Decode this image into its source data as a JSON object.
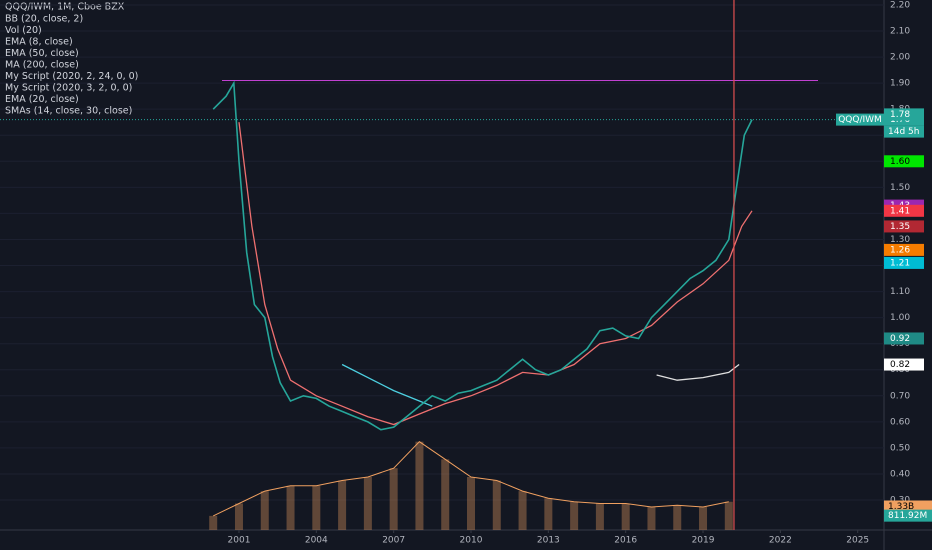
{
  "chart_data": {
    "type": "line",
    "title": "QQQ/IWM, 1M, Cboe BZX",
    "x": [
      2000.0,
      2000.5,
      2000.8,
      2001.0,
      2001.3,
      2001.6,
      2002.0,
      2002.3,
      2002.6,
      2003.0,
      2003.5,
      2004.0,
      2004.5,
      2005.0,
      2005.5,
      2006.0,
      2006.5,
      2007.0,
      2007.5,
      2008.0,
      2008.5,
      2009.0,
      2009.5,
      2010.0,
      2010.5,
      2011.0,
      2011.5,
      2012.0,
      2012.5,
      2013.0,
      2013.5,
      2014.0,
      2014.5,
      2015.0,
      2015.5,
      2016.0,
      2016.5,
      2017.0,
      2017.5,
      2018.0,
      2018.5,
      2019.0,
      2019.5,
      2020.0,
      2020.3,
      2020.6,
      2020.9
    ],
    "values": [
      1.8,
      1.85,
      1.9,
      1.6,
      1.25,
      1.05,
      1.0,
      0.85,
      0.75,
      0.68,
      0.7,
      0.69,
      0.66,
      0.64,
      0.62,
      0.6,
      0.57,
      0.58,
      0.62,
      0.66,
      0.7,
      0.68,
      0.71,
      0.72,
      0.74,
      0.76,
      0.8,
      0.84,
      0.8,
      0.78,
      0.8,
      0.84,
      0.88,
      0.95,
      0.96,
      0.93,
      0.92,
      1.0,
      1.05,
      1.1,
      1.15,
      1.18,
      1.22,
      1.3,
      1.5,
      1.7,
      1.76
    ],
    "color": "#26a69a",
    "series": [
      {
        "name": "BB (20, close, 2)"
      },
      {
        "name": "Vol (20)",
        "axis": "y2",
        "color": "#f0a060",
        "x": [
          2000,
          2001,
          2002,
          2003,
          2004,
          2005,
          2006,
          2007,
          2008,
          2009,
          2010,
          2011,
          2012,
          2013,
          2014,
          2015,
          2016,
          2017,
          2018,
          2019,
          2020
        ],
        "values": [
          0.8,
          1.5,
          2.2,
          2.5,
          2.5,
          2.8,
          3.0,
          3.5,
          5.0,
          4.0,
          3.0,
          2.8,
          2.2,
          1.8,
          1.6,
          1.5,
          1.5,
          1.3,
          1.4,
          1.3,
          1.6
        ]
      },
      {
        "name": "EMA (8, close)"
      },
      {
        "name": "EMA (50, close)"
      },
      {
        "name": "MA (200, close)",
        "color": "#4dd0e1",
        "x": [
          2005.0,
          2006.0,
          2007.0,
          2008.0,
          2008.5
        ],
        "values": [
          0.82,
          0.77,
          0.72,
          0.68,
          0.66
        ]
      },
      {
        "name": "My Script (2020, 2, 24, 0, 0)"
      },
      {
        "name": "My Script (2020, 3, 2, 0, 0)",
        "color": "#e0e0e0",
        "x": [
          2017.2,
          2018.0,
          2019.0,
          2020.0,
          2020.4
        ],
        "values": [
          0.78,
          0.76,
          0.77,
          0.79,
          0.82
        ]
      },
      {
        "name": "EMA (20, close)",
        "color": "#ef7070",
        "x": [
          2001.0,
          2001.5,
          2002.0,
          2002.5,
          2003.0,
          2004.0,
          2005.0,
          2006.0,
          2007.0,
          2008.0,
          2009.0,
          2010.0,
          2011.0,
          2012.0,
          2013.0,
          2014.0,
          2015.0,
          2016.0,
          2017.0,
          2018.0,
          2019.0,
          2020.0,
          2020.5,
          2020.9
        ],
        "values": [
          1.75,
          1.35,
          1.05,
          0.88,
          0.76,
          0.7,
          0.66,
          0.62,
          0.59,
          0.63,
          0.67,
          0.7,
          0.74,
          0.79,
          0.78,
          0.82,
          0.9,
          0.92,
          0.97,
          1.06,
          1.13,
          1.22,
          1.35,
          1.41
        ]
      },
      {
        "name": "SMAs (14, close, 30, close)"
      }
    ],
    "xlim": [
      1991.73,
      2026.02
    ],
    "xticks": [
      2001,
      2004,
      2007,
      2010,
      2013,
      2016,
      2019,
      2022,
      2025
    ],
    "ylim": [
      0.185,
      2.219
    ],
    "yticks": [
      {
        "value": 0.3,
        "label": "0.30"
      },
      {
        "value": 0.4,
        "label": "0.40"
      },
      {
        "value": 0.5,
        "label": "0.50"
      },
      {
        "value": 0.6,
        "label": "0.60"
      },
      {
        "value": 0.7,
        "label": "0.70"
      },
      {
        "value": 0.8,
        "label": "0.80"
      },
      {
        "value": 0.9,
        "label": "0.90"
      },
      {
        "value": 1.0,
        "label": "1.00"
      },
      {
        "value": 1.1,
        "label": "1.10"
      },
      {
        "value": 1.2,
        "label": "1.20"
      },
      {
        "value": 1.3,
        "label": "1.30"
      },
      {
        "value": 1.4,
        "label": "1.40"
      },
      {
        "value": 1.5,
        "label": "1.50"
      },
      {
        "value": 1.6,
        "label": "1.60"
      },
      {
        "value": 1.7,
        "label": "1.70"
      },
      {
        "value": 1.8,
        "label": "1.80"
      },
      {
        "value": 1.9,
        "label": "1.90"
      },
      {
        "value": 2.0,
        "label": "2.00"
      },
      {
        "value": 2.1,
        "label": "2.10"
      },
      {
        "value": 2.2,
        "label": "2.20"
      }
    ],
    "y2lim": [
      0,
      30
    ],
    "hlines": [
      {
        "value": 1.91,
        "color": "#c040d0"
      }
    ],
    "vlines": [
      {
        "value": 2020.2,
        "color": "#e05050"
      }
    ],
    "price_tag": {
      "value": 1.76,
      "symbol": "QQQ/IWM",
      "countdown": "14d 5h",
      "color": "#26a69a"
    },
    "price_labels": [
      {
        "value": 1.78,
        "color": "#26a69a"
      },
      {
        "value": {
          "value": 1.6,
          "label": "1.60"
        },
        "color": "#00e600"
      },
      {
        "value": 1.43,
        "color": "#9c27b0"
      },
      {
        "value": 1.41,
        "color": "#f23645"
      },
      {
        "value": 1.35,
        "color": "#b22833"
      },
      {
        "value": 1.26,
        "color": "#f57c00"
      },
      {
        "value": 1.21,
        "color": "#00bcd4"
      },
      {
        "value": 0.92,
        "color": "#1f8a85"
      },
      {
        "value": 0.82,
        "color": "#ffffff"
      }
    ],
    "volume_labels": [
      {
        "value": 1.33,
        "label": "1.33B",
        "color": "#f0a060"
      },
      {
        "value": 0.81192,
        "label": "811.92M",
        "color": "#26a69a"
      }
    ]
  }
}
